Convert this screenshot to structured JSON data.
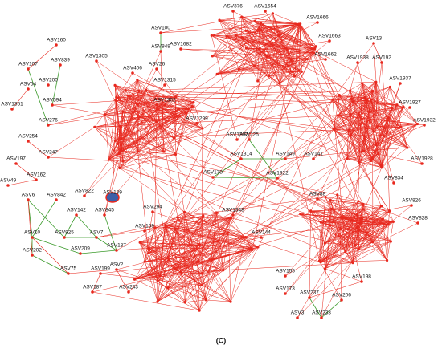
{
  "nodes": [
    "ASV376",
    "ASV1654",
    "ASV1666",
    "ASV13",
    "ASV192",
    "ASV1663",
    "ASV1662",
    "ASV1938",
    "ASV1937",
    "ASV1927",
    "ASV1932",
    "ASV1928",
    "ASV834",
    "ASV826",
    "ASV828",
    "ASV198",
    "ASV237",
    "ASV206",
    "ASV233",
    "ASV3",
    "ASV173",
    "ASV100",
    "ASV848",
    "ASV1682",
    "ASV160",
    "ASV107",
    "ASV839",
    "ASV1305",
    "ASV406",
    "ASV26",
    "ASV54",
    "ASV200",
    "ASV1361",
    "ASV594",
    "ASV276",
    "ASV1315",
    "ASV1302",
    "ASV1299",
    "ASV254",
    "ASV247",
    "ASV197",
    "ASV162",
    "ASV49",
    "ASV1297",
    "ASV225",
    "ASV149",
    "ASV141",
    "ASV1314",
    "ASV178",
    "ASV1322",
    "ASV6",
    "ASV842",
    "ASV822",
    "ASV139",
    "ASV294",
    "ASV142",
    "ASV845",
    "ASV159",
    "ASV88",
    "ASV1348",
    "ASV10",
    "ASV825",
    "ASV209",
    "ASV7",
    "ASV137",
    "ASV2",
    "ASV202",
    "ASV75",
    "ASV199",
    "ASV187",
    "ASV243",
    "ASV144",
    "ASV155"
  ],
  "caption": "(C)"
}
